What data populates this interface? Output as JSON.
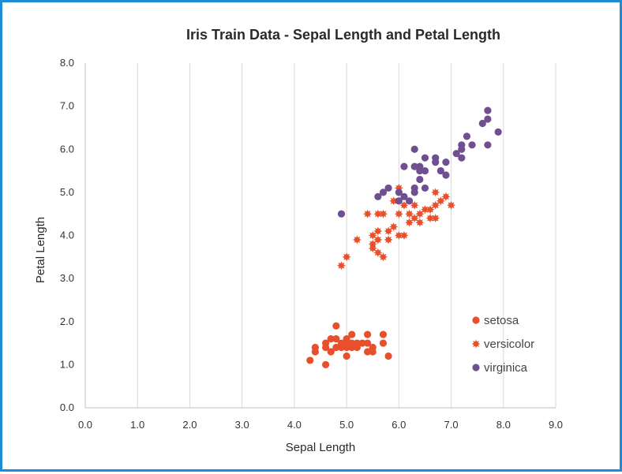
{
  "chart_data": {
    "type": "scatter",
    "title": "Iris Train Data - Sepal Length and Petal Length",
    "xlabel": "Sepal Length",
    "ylabel": "Petal  Length",
    "xlim": [
      0,
      9
    ],
    "ylim": [
      0,
      8
    ],
    "x_ticks": [
      "0.0",
      "1.0",
      "2.0",
      "3.0",
      "4.0",
      "5.0",
      "6.0",
      "7.0",
      "8.0",
      "9.0"
    ],
    "y_ticks": [
      "0.0",
      "1.0",
      "2.0",
      "3.0",
      "4.0",
      "5.0",
      "6.0",
      "7.0",
      "8.0"
    ],
    "grid": "vertical",
    "legend_position": "bottom-right",
    "series": [
      {
        "name": "setosa",
        "marker": "circle",
        "color": "#e8502b",
        "points": [
          [
            4.3,
            1.1
          ],
          [
            4.4,
            1.3
          ],
          [
            4.4,
            1.4
          ],
          [
            4.6,
            1.0
          ],
          [
            4.6,
            1.4
          ],
          [
            4.6,
            1.5
          ],
          [
            4.7,
            1.3
          ],
          [
            4.7,
            1.6
          ],
          [
            4.8,
            1.4
          ],
          [
            4.8,
            1.6
          ],
          [
            4.8,
            1.9
          ],
          [
            4.9,
            1.4
          ],
          [
            4.9,
            1.5
          ],
          [
            5.0,
            1.2
          ],
          [
            5.0,
            1.4
          ],
          [
            5.0,
            1.5
          ],
          [
            5.0,
            1.6
          ],
          [
            5.1,
            1.4
          ],
          [
            5.1,
            1.5
          ],
          [
            5.1,
            1.7
          ],
          [
            5.2,
            1.4
          ],
          [
            5.2,
            1.5
          ],
          [
            5.3,
            1.5
          ],
          [
            5.4,
            1.3
          ],
          [
            5.4,
            1.5
          ],
          [
            5.4,
            1.7
          ],
          [
            5.5,
            1.3
          ],
          [
            5.5,
            1.4
          ],
          [
            5.7,
            1.5
          ],
          [
            5.7,
            1.7
          ],
          [
            5.8,
            1.2
          ]
        ]
      },
      {
        "name": "versicolor",
        "marker": "star",
        "color": "#e8502b",
        "points": [
          [
            4.9,
            3.3
          ],
          [
            5.0,
            3.5
          ],
          [
            5.2,
            3.9
          ],
          [
            5.4,
            4.5
          ],
          [
            5.5,
            3.7
          ],
          [
            5.5,
            3.8
          ],
          [
            5.5,
            4.0
          ],
          [
            5.6,
            3.6
          ],
          [
            5.6,
            3.9
          ],
          [
            5.6,
            4.1
          ],
          [
            5.6,
            4.5
          ],
          [
            5.7,
            3.5
          ],
          [
            5.7,
            4.5
          ],
          [
            5.8,
            3.9
          ],
          [
            5.8,
            4.1
          ],
          [
            5.9,
            4.2
          ],
          [
            5.9,
            4.8
          ],
          [
            6.0,
            4.0
          ],
          [
            6.0,
            4.5
          ],
          [
            6.0,
            5.1
          ],
          [
            6.1,
            4.0
          ],
          [
            6.1,
            4.7
          ],
          [
            6.2,
            4.3
          ],
          [
            6.2,
            4.5
          ],
          [
            6.3,
            4.4
          ],
          [
            6.3,
            4.7
          ],
          [
            6.4,
            4.3
          ],
          [
            6.4,
            4.5
          ],
          [
            6.5,
            4.6
          ],
          [
            6.6,
            4.4
          ],
          [
            6.6,
            4.6
          ],
          [
            6.7,
            4.4
          ],
          [
            6.7,
            4.7
          ],
          [
            6.7,
            5.0
          ],
          [
            6.8,
            4.8
          ],
          [
            6.9,
            4.9
          ],
          [
            7.0,
            4.7
          ]
        ]
      },
      {
        "name": "virginica",
        "marker": "circle",
        "color": "#6f4f8f",
        "points": [
          [
            4.9,
            4.5
          ],
          [
            5.6,
            4.9
          ],
          [
            5.7,
            5.0
          ],
          [
            5.8,
            5.1
          ],
          [
            6.0,
            4.8
          ],
          [
            6.0,
            5.0
          ],
          [
            6.1,
            4.9
          ],
          [
            6.1,
            5.6
          ],
          [
            6.2,
            4.8
          ],
          [
            6.3,
            5.0
          ],
          [
            6.3,
            5.1
          ],
          [
            6.3,
            5.6
          ],
          [
            6.3,
            6.0
          ],
          [
            6.4,
            5.3
          ],
          [
            6.4,
            5.5
          ],
          [
            6.4,
            5.6
          ],
          [
            6.5,
            5.1
          ],
          [
            6.5,
            5.5
          ],
          [
            6.5,
            5.8
          ],
          [
            6.7,
            5.7
          ],
          [
            6.7,
            5.8
          ],
          [
            6.8,
            5.5
          ],
          [
            6.9,
            5.4
          ],
          [
            6.9,
            5.7
          ],
          [
            7.1,
            5.9
          ],
          [
            7.2,
            5.8
          ],
          [
            7.2,
            6.0
          ],
          [
            7.2,
            6.1
          ],
          [
            7.3,
            6.3
          ],
          [
            7.4,
            6.1
          ],
          [
            7.6,
            6.6
          ],
          [
            7.7,
            6.1
          ],
          [
            7.7,
            6.7
          ],
          [
            7.7,
            6.9
          ],
          [
            7.9,
            6.4
          ]
        ]
      }
    ]
  }
}
